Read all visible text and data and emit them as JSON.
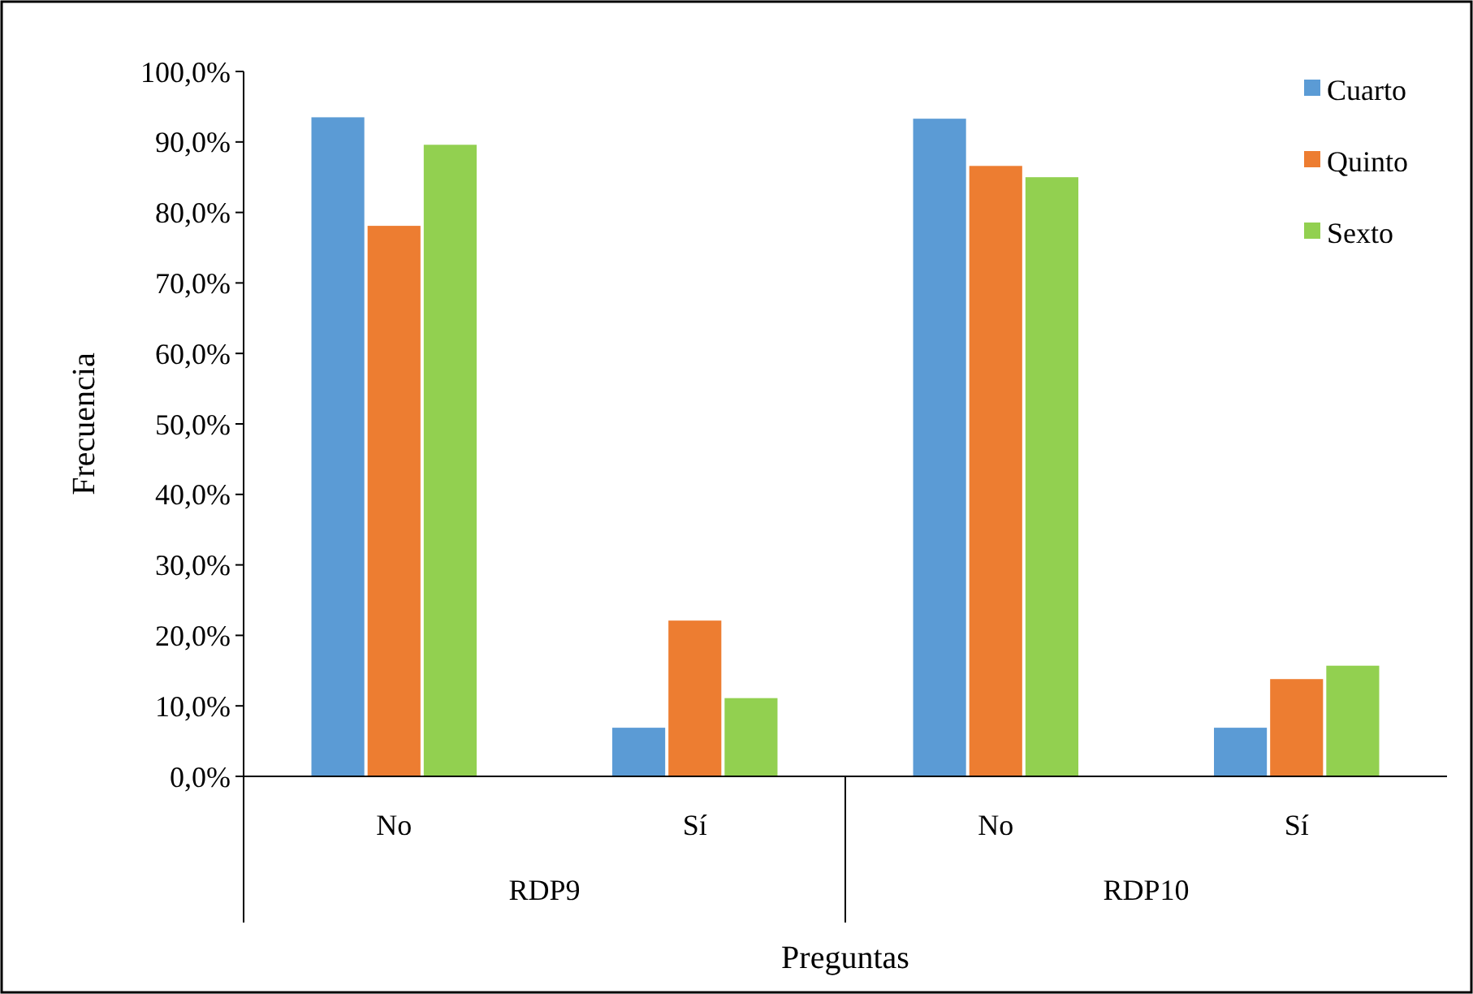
{
  "chart_data": {
    "type": "bar",
    "xlabel": "Preguntas",
    "ylabel": "Frecuencia",
    "categories": [
      "No",
      "Sí",
      "No",
      "Sí"
    ],
    "annotations": [
      "RDP9",
      "RDP10"
    ],
    "series": [
      {
        "name": "Cuarto",
        "color": "#5b9bd5",
        "values": [
          93.5,
          6.9,
          93.3,
          6.9
        ]
      },
      {
        "name": "Quinto",
        "color": "#ed7d31",
        "values": [
          78.1,
          22.1,
          86.6,
          13.8
        ]
      },
      {
        "name": "Sexto",
        "color": "#92d050",
        "values": [
          89.6,
          11.1,
          85.0,
          15.7
        ]
      }
    ],
    "ylim": [
      0,
      100
    ],
    "yticks": [
      {
        "value": 0,
        "label": "0,0%"
      },
      {
        "value": 10,
        "label": "10,0%"
      },
      {
        "value": 20,
        "label": "20,0%"
      },
      {
        "value": 30,
        "label": "30,0%"
      },
      {
        "value": 40,
        "label": "40,0%"
      },
      {
        "value": 50,
        "label": "50,0%"
      },
      {
        "value": 60,
        "label": "60,0%"
      },
      {
        "value": 70,
        "label": "70,0%"
      },
      {
        "value": 80,
        "label": "80,0%"
      },
      {
        "value": 90,
        "label": "90,0%"
      },
      {
        "value": 100,
        "label": "100,0%"
      }
    ],
    "grid": false,
    "legend": "top right"
  }
}
